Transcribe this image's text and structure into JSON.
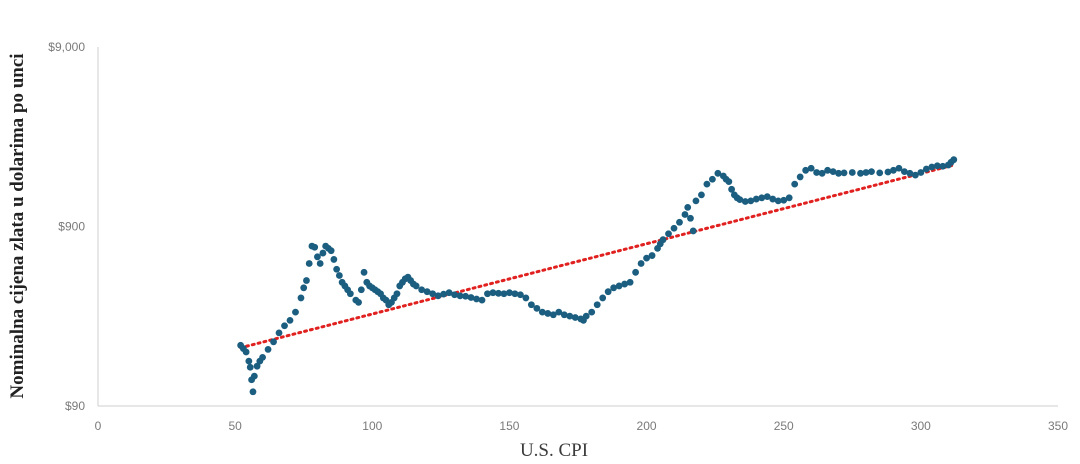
{
  "chart_data": {
    "type": "scatter",
    "xlabel": "U.S. CPI",
    "ylabel": "Nominalna cijena zlata u dolarima po unci",
    "xlim": [
      0,
      350
    ],
    "xticks": [
      0,
      50,
      100,
      150,
      200,
      250,
      300,
      350
    ],
    "xtick_labels": [
      "0",
      "50",
      "100",
      "150",
      "200",
      "250",
      "300",
      "350"
    ],
    "yscale": "log",
    "ylim": [
      90,
      9000
    ],
    "yticks": [
      90,
      900,
      9000
    ],
    "ytick_labels": [
      "$90",
      "$900",
      "$9,000"
    ],
    "grid": false,
    "legend": "none",
    "colors": {
      "points": "#1b5e80",
      "trend": "#e0211f",
      "axis": "#cfcfcf"
    },
    "series": [
      {
        "type": "scatter",
        "points": [
          [
            52,
            196
          ],
          [
            53,
            188
          ],
          [
            54,
            180
          ],
          [
            55,
            160
          ],
          [
            55.5,
            148
          ],
          [
            56,
            126
          ],
          [
            56.5,
            108
          ],
          [
            57,
            132
          ],
          [
            58,
            150
          ],
          [
            59,
            160
          ],
          [
            60,
            168
          ],
          [
            62,
            186
          ],
          [
            64,
            205
          ],
          [
            66,
            230
          ],
          [
            68,
            252
          ],
          [
            70,
            270
          ],
          [
            72,
            300
          ],
          [
            74,
            360
          ],
          [
            75,
            410
          ],
          [
            76,
            450
          ],
          [
            77,
            560
          ],
          [
            78,
            700
          ],
          [
            79,
            690
          ],
          [
            80,
            610
          ],
          [
            81,
            560
          ],
          [
            82,
            640
          ],
          [
            83,
            700
          ],
          [
            84,
            680
          ],
          [
            85,
            660
          ],
          [
            86,
            590
          ],
          [
            87,
            520
          ],
          [
            88,
            480
          ],
          [
            89,
            440
          ],
          [
            90,
            420
          ],
          [
            91,
            400
          ],
          [
            92,
            380
          ],
          [
            94,
            350
          ],
          [
            95,
            340
          ],
          [
            96,
            400
          ],
          [
            97,
            500
          ],
          [
            98,
            440
          ],
          [
            99,
            420
          ],
          [
            100,
            410
          ],
          [
            101,
            400
          ],
          [
            102,
            390
          ],
          [
            103,
            380
          ],
          [
            104,
            360
          ],
          [
            105,
            350
          ],
          [
            106,
            330
          ],
          [
            107,
            340
          ],
          [
            108,
            360
          ],
          [
            109,
            380
          ],
          [
            110,
            420
          ],
          [
            111,
            440
          ],
          [
            112,
            460
          ],
          [
            113,
            470
          ],
          [
            114,
            450
          ],
          [
            115,
            430
          ],
          [
            116,
            420
          ],
          [
            118,
            400
          ],
          [
            120,
            390
          ],
          [
            122,
            380
          ],
          [
            124,
            370
          ],
          [
            126,
            378
          ],
          [
            128,
            385
          ],
          [
            130,
            375
          ],
          [
            132,
            370
          ],
          [
            134,
            368
          ],
          [
            136,
            362
          ],
          [
            138,
            355
          ],
          [
            140,
            350
          ],
          [
            142,
            380
          ],
          [
            144,
            385
          ],
          [
            146,
            382
          ],
          [
            148,
            380
          ],
          [
            150,
            385
          ],
          [
            152,
            380
          ],
          [
            154,
            375
          ],
          [
            156,
            360
          ],
          [
            158,
            330
          ],
          [
            160,
            315
          ],
          [
            162,
            300
          ],
          [
            164,
            295
          ],
          [
            166,
            290
          ],
          [
            168,
            300
          ],
          [
            170,
            290
          ],
          [
            172,
            285
          ],
          [
            174,
            280
          ],
          [
            176,
            275
          ],
          [
            177,
            270
          ],
          [
            178,
            285
          ],
          [
            180,
            300
          ],
          [
            182,
            330
          ],
          [
            184,
            360
          ],
          [
            186,
            390
          ],
          [
            188,
            410
          ],
          [
            190,
            420
          ],
          [
            192,
            430
          ],
          [
            194,
            440
          ],
          [
            196,
            500
          ],
          [
            198,
            560
          ],
          [
            200,
            600
          ],
          [
            202,
            620
          ],
          [
            204,
            680
          ],
          [
            205,
            720
          ],
          [
            206,
            760
          ],
          [
            208,
            820
          ],
          [
            210,
            880
          ],
          [
            212,
            950
          ],
          [
            214,
            1050
          ],
          [
            215,
            1150
          ],
          [
            216,
            1000
          ],
          [
            217,
            850
          ],
          [
            218,
            1250
          ],
          [
            220,
            1350
          ],
          [
            222,
            1550
          ],
          [
            224,
            1650
          ],
          [
            226,
            1780
          ],
          [
            228,
            1720
          ],
          [
            229,
            1650
          ],
          [
            230,
            1600
          ],
          [
            231,
            1450
          ],
          [
            232,
            1350
          ],
          [
            233,
            1300
          ],
          [
            234,
            1270
          ],
          [
            236,
            1240
          ],
          [
            238,
            1250
          ],
          [
            240,
            1280
          ],
          [
            242,
            1300
          ],
          [
            244,
            1320
          ],
          [
            246,
            1280
          ],
          [
            248,
            1250
          ],
          [
            250,
            1260
          ],
          [
            252,
            1300
          ],
          [
            254,
            1550
          ],
          [
            256,
            1700
          ],
          [
            258,
            1850
          ],
          [
            260,
            1900
          ],
          [
            262,
            1800
          ],
          [
            264,
            1780
          ],
          [
            266,
            1850
          ],
          [
            268,
            1820
          ],
          [
            270,
            1780
          ],
          [
            272,
            1790
          ],
          [
            275,
            1800
          ],
          [
            278,
            1780
          ],
          [
            280,
            1800
          ],
          [
            282,
            1820
          ],
          [
            285,
            1790
          ],
          [
            288,
            1810
          ],
          [
            290,
            1850
          ],
          [
            292,
            1900
          ],
          [
            294,
            1820
          ],
          [
            296,
            1780
          ],
          [
            298,
            1740
          ],
          [
            300,
            1800
          ],
          [
            302,
            1880
          ],
          [
            304,
            1930
          ],
          [
            306,
            1960
          ],
          [
            308,
            1950
          ],
          [
            310,
            1980
          ],
          [
            311,
            2050
          ],
          [
            312,
            2120
          ]
        ]
      },
      {
        "type": "trend",
        "points": [
          [
            52,
            190
          ],
          [
            312,
            1980
          ]
        ]
      }
    ]
  }
}
